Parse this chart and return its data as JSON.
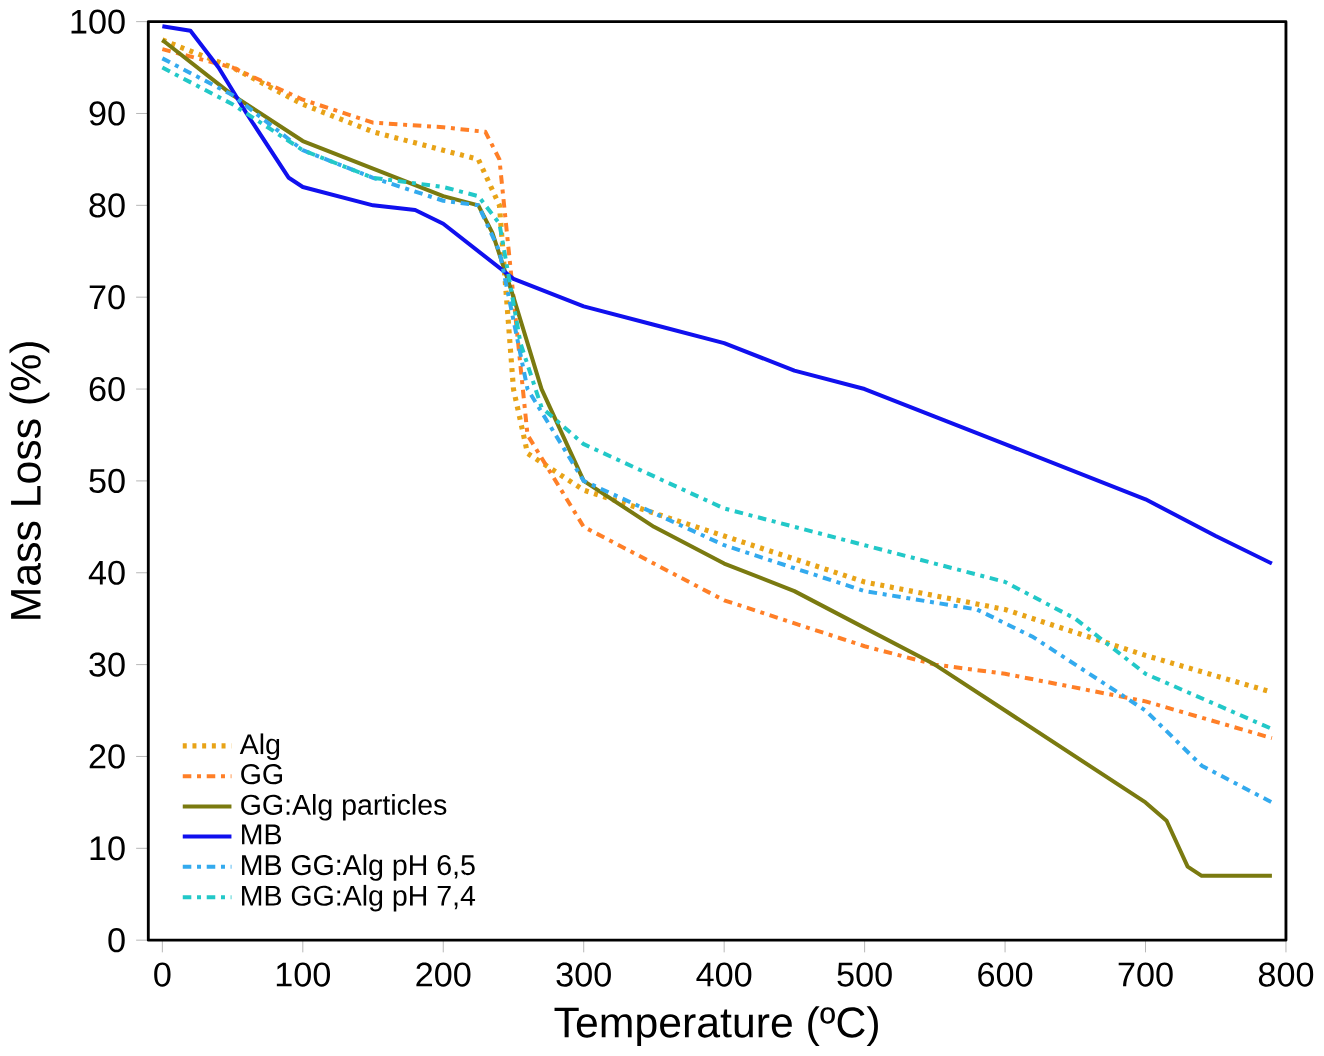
{
  "chart_data": {
    "type": "line",
    "xlabel": "Temperature (ºC)",
    "ylabel": "Mass Loss (%)",
    "xlim": [
      -10,
      800
    ],
    "ylim": [
      0,
      100
    ],
    "xticks": [
      0,
      100,
      200,
      300,
      400,
      500,
      600,
      700,
      800
    ],
    "yticks": [
      0,
      10,
      20,
      30,
      40,
      50,
      60,
      70,
      80,
      90,
      100
    ],
    "grid": false,
    "legend": "bottom left",
    "marker": "none",
    "series": [
      {
        "name": "Alg",
        "color": "#e8a317",
        "line_style": "dotted",
        "x": [
          0,
          50,
          100,
          150,
          200,
          225,
          240,
          250,
          260,
          300,
          400,
          500,
          600,
          700,
          790
        ],
        "values": [
          98,
          95,
          91,
          88,
          86,
          85,
          80,
          60,
          53,
          49,
          44,
          39,
          36,
          31,
          27
        ]
      },
      {
        "name": "GG",
        "color": "#ff7f27",
        "line_style": "dashdot",
        "x": [
          0,
          50,
          100,
          150,
          200,
          230,
          240,
          250,
          260,
          300,
          400,
          500,
          550,
          600,
          700,
          790
        ],
        "values": [
          97,
          95,
          91.5,
          89,
          88.5,
          88,
          85,
          70,
          55,
          45,
          37,
          32,
          30,
          29,
          26,
          22
        ]
      },
      {
        "name": "GG:Alg particles",
        "color": "#7a7a10",
        "line_style": "solid",
        "x": [
          0,
          50,
          100,
          150,
          200,
          225,
          235,
          250,
          270,
          300,
          350,
          400,
          450,
          500,
          550,
          600,
          650,
          700,
          715,
          730,
          740,
          790
        ],
        "values": [
          98,
          92,
          87,
          84,
          81,
          80,
          77,
          70,
          60,
          50,
          45,
          41,
          38,
          34,
          30,
          25,
          20,
          15,
          13,
          8,
          7,
          7
        ]
      },
      {
        "name": "MB",
        "color": "#1010ee",
        "line_style": "solid",
        "x": [
          0,
          20,
          40,
          60,
          90,
          100,
          150,
          180,
          200,
          250,
          300,
          350,
          400,
          450,
          500,
          550,
          600,
          650,
          700,
          750,
          790
        ],
        "values": [
          99.5,
          99,
          95,
          90,
          83,
          82,
          80,
          79.5,
          78,
          72,
          69,
          67,
          65,
          62,
          60,
          57,
          54,
          51,
          48,
          44,
          41
        ]
      },
      {
        "name": "MB GG:Alg pH 6,5",
        "color": "#33aaee",
        "line_style": "dashdot",
        "x": [
          0,
          50,
          100,
          150,
          200,
          225,
          240,
          260,
          300,
          400,
          500,
          580,
          620,
          660,
          700,
          740,
          790
        ],
        "values": [
          96,
          92,
          86,
          83,
          80.5,
          80,
          75,
          60,
          50,
          43,
          38,
          36,
          33,
          29,
          25,
          19,
          15
        ]
      },
      {
        "name": "MB GG:Alg pH 7,4",
        "color": "#22c8c8",
        "line_style": "dashdot",
        "x": [
          0,
          50,
          100,
          150,
          200,
          225,
          240,
          255,
          270,
          300,
          400,
          500,
          600,
          650,
          700,
          790
        ],
        "values": [
          95,
          91,
          86,
          83,
          82,
          81,
          78,
          65,
          58,
          54,
          47,
          43,
          39,
          35,
          29,
          23
        ]
      }
    ]
  }
}
